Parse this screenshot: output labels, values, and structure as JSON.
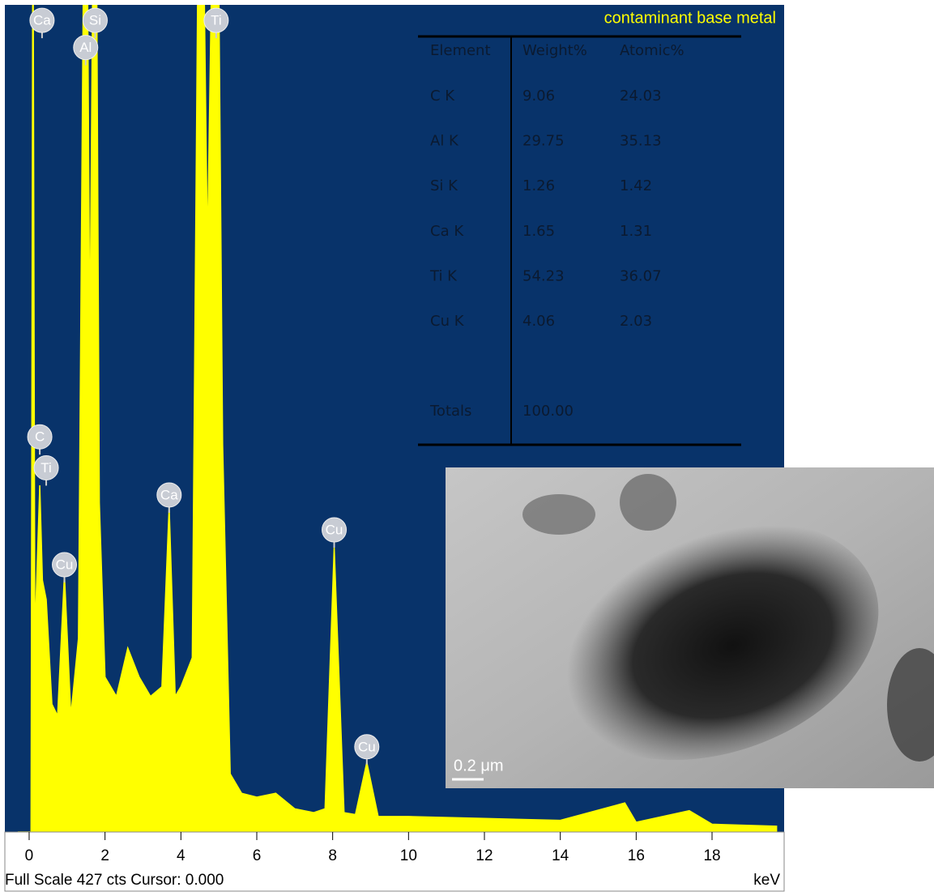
{
  "chart_data": {
    "type": "area",
    "title": "contaminant base metal",
    "color": "#ffff00",
    "x": [
      -0.3,
      0.05,
      0.1,
      0.15,
      0.28,
      0.35,
      0.45,
      0.6,
      0.75,
      0.93,
      1.1,
      1.3,
      1.49,
      1.6,
      1.74,
      1.85,
      2.0,
      2.3,
      2.6,
      2.9,
      3.2,
      3.5,
      3.69,
      3.85,
      4.0,
      4.3,
      4.51,
      4.7,
      4.93,
      5.1,
      5.3,
      5.6,
      6.0,
      6.5,
      7.0,
      7.5,
      7.8,
      8.04,
      8.3,
      8.6,
      8.9,
      9.2,
      10,
      12,
      14,
      15.7,
      16,
      17.4,
      18,
      19.7
    ],
    "values": [
      0,
      0,
      500,
      100,
      179,
      130,
      120,
      66,
      60,
      133,
      60,
      100,
      600,
      250,
      600,
      170,
      80,
      70,
      95,
      80,
      70,
      75,
      168,
      70,
      75,
      90,
      600,
      300,
      600,
      200,
      30,
      20,
      18,
      20,
      12,
      10,
      12,
      147,
      10,
      9,
      36,
      8,
      8,
      7,
      6,
      15,
      5,
      11,
      4,
      3
    ],
    "xlim": [
      -0.64,
      19.9
    ],
    "ylim": [
      0,
      427
    ],
    "xticks": [
      0,
      2,
      4,
      6,
      8,
      10,
      12,
      14,
      16,
      18
    ],
    "x_unit": "keV",
    "footer": "Full Scale 427 cts Cursor: 0.000",
    "peak_labels": [
      {
        "label": "Ca",
        "x": 0.34,
        "y": 419
      },
      {
        "label": "C",
        "x": 0.28,
        "y": 204
      },
      {
        "label": "Ti",
        "x": 0.45,
        "y": 188
      },
      {
        "label": "Cu",
        "x": 0.93,
        "y": 138
      },
      {
        "label": "Si",
        "x": 1.74,
        "y": 419
      },
      {
        "label": "Al",
        "x": 1.49,
        "y": 405
      },
      {
        "label": "Ti",
        "x": 4.93,
        "y": 419
      },
      {
        "label": "Ca",
        "x": 3.69,
        "y": 174
      },
      {
        "label": "Cu",
        "x": 8.04,
        "y": 156
      },
      {
        "label": "Cu",
        "x": 8.9,
        "y": 44
      }
    ],
    "table": {
      "header": [
        "Element",
        "Weight%",
        "Atomic%"
      ],
      "rows": [
        [
          "C K",
          "9.06",
          "24.03"
        ],
        [
          "Al K",
          "29.75",
          "35.13"
        ],
        [
          "Si K",
          "1.26",
          "1.42"
        ],
        [
          "Ca K",
          "1.65",
          "1.31"
        ],
        [
          "Ti K",
          "54.23",
          "36.07"
        ],
        [
          "Cu K",
          "4.06",
          "2.03"
        ]
      ],
      "totals": [
        "Totals",
        "100.00"
      ]
    },
    "scale_bar": "0.2 μm"
  }
}
